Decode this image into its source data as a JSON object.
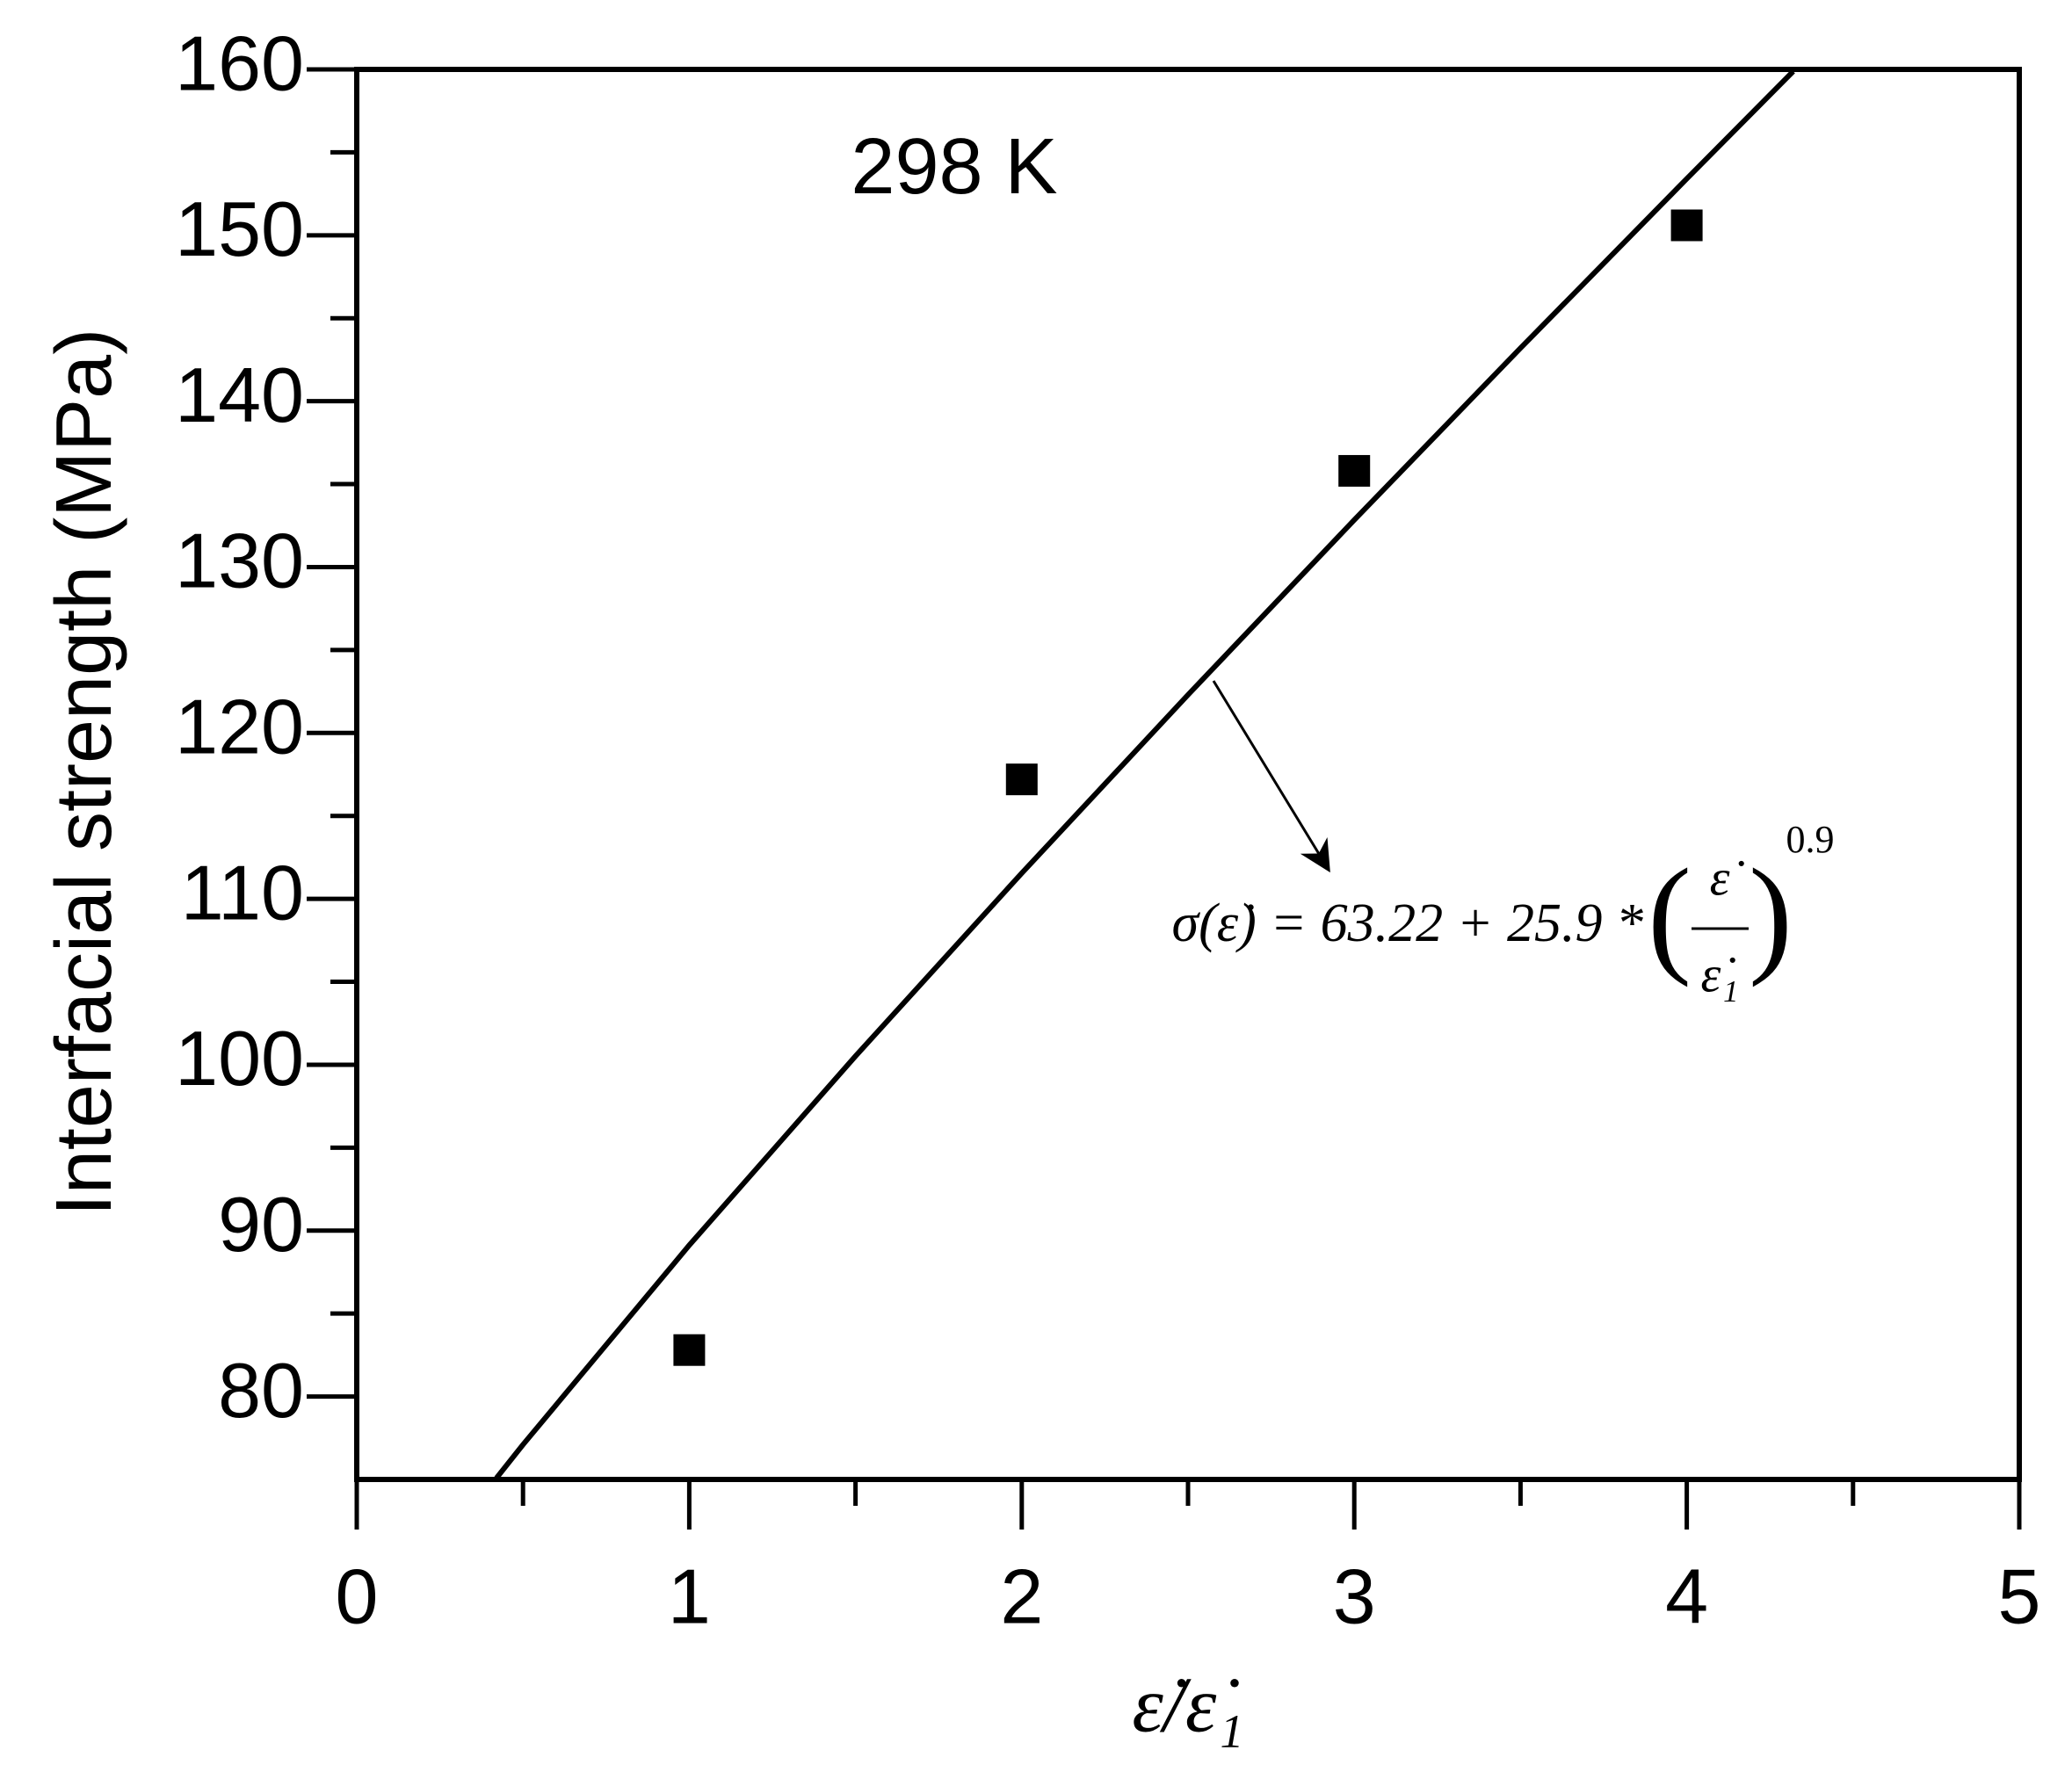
{
  "chart_data": {
    "type": "scatter",
    "x_label": "ε̇/ε̇₁",
    "y_label": "Interfacial strength (MPa)",
    "annotations": {
      "condition": "298 K",
      "equation": {
        "lhs": "σ(ε̇) = 63.22 + 25.9 * ",
        "numerator": "ε̇",
        "denominator": "ε̇₁",
        "exponent": "0.9"
      }
    },
    "series": [
      {
        "type": "scatter",
        "color": "#000000",
        "x": [
          1,
          2,
          3,
          4
        ],
        "values": [
          82.8,
          117.2,
          135.8,
          150.6
        ]
      },
      {
        "type": "line",
        "color": "#000000",
        "x": [
          0.42,
          0.5,
          1,
          1.5,
          2,
          2.5,
          3,
          3.5,
          4,
          4.32
        ],
        "values": [
          75.08,
          77.1,
          89.12,
          100.52,
          111.55,
          122.3,
          132.84,
          143.2,
          153.41,
          159.88
        ]
      }
    ],
    "xlim": [
      0,
      5
    ],
    "xticks": [
      0,
      1,
      2,
      3,
      4,
      5
    ],
    "ylim": [
      75,
      160
    ],
    "yticks": [
      80,
      90,
      100,
      110,
      120,
      130,
      140,
      150,
      160
    ]
  }
}
